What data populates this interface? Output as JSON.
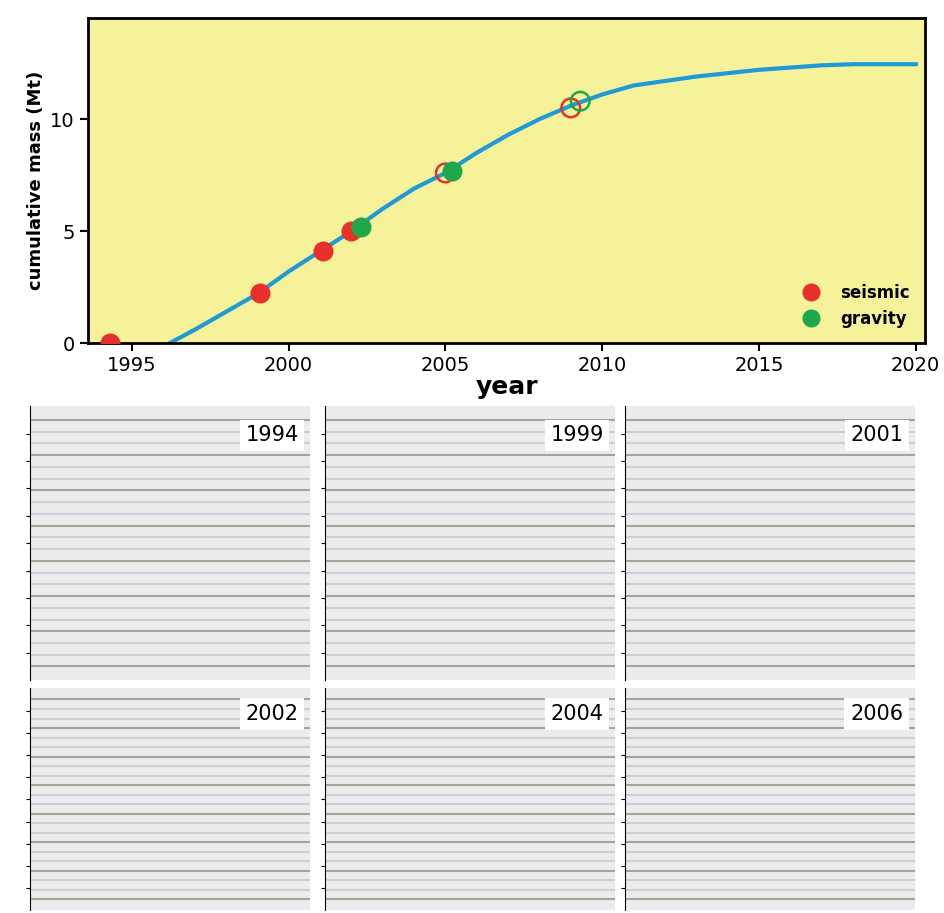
{
  "chart_data": {
    "type": "line",
    "xlabel": "year",
    "ylabel": "cumulative mass (Mt)",
    "x": [
      1996.2,
      1997,
      1998,
      1999,
      2000,
      2001,
      2002,
      2003,
      2004,
      2005,
      2006,
      2007,
      2008,
      2009,
      2010,
      2011,
      2012,
      2013,
      2014,
      2015,
      2016,
      2017,
      2018,
      2019,
      2020
    ],
    "values": [
      0,
      0.6,
      1.4,
      2.2,
      3.2,
      4.1,
      5.0,
      6.0,
      6.9,
      7.6,
      8.5,
      9.3,
      10.0,
      10.6,
      11.1,
      11.5,
      11.7,
      11.9,
      12.05,
      12.2,
      12.3,
      12.4,
      12.45,
      12.45,
      12.45
    ],
    "color": "#1e9bd7",
    "series": [
      {
        "name": "seismic",
        "type": "scatter",
        "color": "#e8302a",
        "marker": "filled",
        "x": [
          1994.3,
          1999.1,
          2001.1,
          2002.0
        ],
        "values": [
          0,
          2.25,
          4.1,
          5.0
        ]
      },
      {
        "name": "seismic",
        "type": "scatter",
        "color": "#e8302a",
        "marker": "open",
        "x": [
          2005.0,
          2009.0
        ],
        "values": [
          7.6,
          10.5
        ]
      },
      {
        "name": "gravity",
        "type": "scatter",
        "color": "#1ea84a",
        "marker": "filled",
        "x": [
          2002.3,
          2005.2
        ],
        "values": [
          5.2,
          7.7
        ]
      },
      {
        "name": "gravity",
        "type": "scatter",
        "color": "#1ea84a",
        "marker": "open",
        "x": [
          2009.3
        ],
        "values": [
          10.8
        ]
      }
    ],
    "xlim": [
      1993.6,
      2020.3
    ],
    "ylim": [
      0,
      14.5
    ],
    "xticks": [
      1995,
      2000,
      2005,
      2010,
      2015,
      2020
    ],
    "yticks": [
      0,
      5,
      10
    ],
    "legend": "lower right"
  },
  "seismic_panels": [
    "1994",
    "1999",
    "2001",
    "2002",
    "2004",
    "2006"
  ]
}
